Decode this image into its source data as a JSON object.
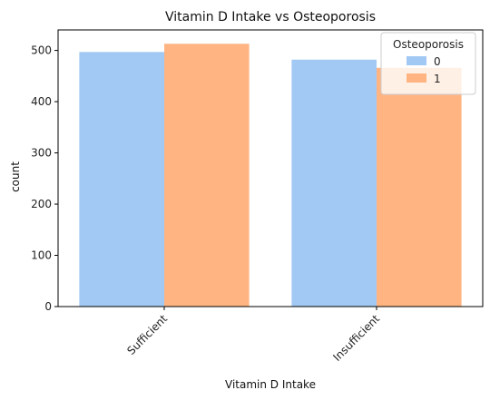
{
  "chart_data": {
    "type": "bar",
    "title": "Vitamin D Intake vs Osteoporosis",
    "xlabel": "Vitamin D Intake",
    "ylabel": "count",
    "categories": [
      "Sufficient",
      "Insufficient"
    ],
    "series": [
      {
        "name": "0",
        "values": [
          497,
          482
        ],
        "color": "#a1c9f4"
      },
      {
        "name": "1",
        "values": [
          513,
          466
        ],
        "color": "#ffb482"
      }
    ],
    "ylim": [
      0,
      540
    ],
    "yticks": [
      0,
      100,
      200,
      300,
      400,
      500
    ],
    "grid": false,
    "legend": {
      "title": "Osteoporosis",
      "placement": "top-right"
    }
  }
}
